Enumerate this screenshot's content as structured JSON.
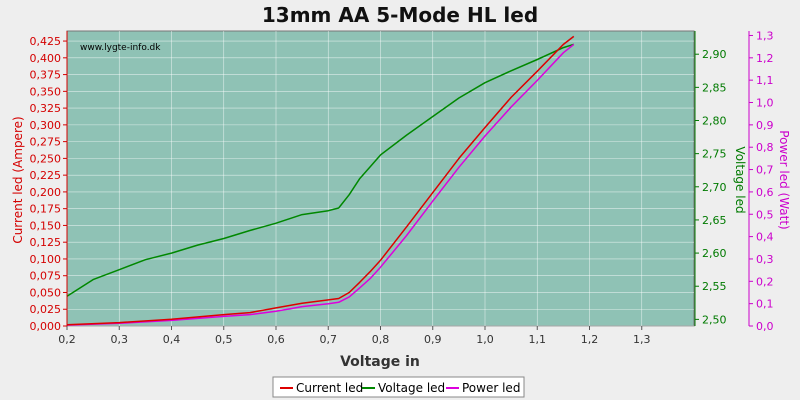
{
  "chart_data": {
    "type": "line",
    "title": "13mm AA 5-Mode HL led",
    "watermark": "www.lygte-info.dk",
    "xlabel": "Voltage in",
    "xlim": [
      0.2,
      1.4
    ],
    "x_ticks": [
      "0,2",
      "0,3",
      "0,4",
      "0,5",
      "0,6",
      "0,7",
      "0,8",
      "0,9",
      "1,0",
      "1,1",
      "1,2",
      "1,3"
    ],
    "axes": {
      "left": {
        "label": "Current led (Ampere)",
        "color": "#d40000",
        "lim": [
          0.0,
          0.44
        ],
        "ticks": [
          "0,000",
          "0,025",
          "0,050",
          "0,075",
          "0,100",
          "0,125",
          "0,150",
          "0,175",
          "0,200",
          "0,225",
          "0,250",
          "0,275",
          "0,300",
          "0,325",
          "0,350",
          "0,375",
          "0,400",
          "0,425"
        ]
      },
      "right1": {
        "label": "Voltage led",
        "color": "#007a00",
        "lim": [
          2.49,
          2.935
        ],
        "ticks": [
          "2,50",
          "2,55",
          "2,60",
          "2,65",
          "2,70",
          "2,75",
          "2,80",
          "2,85",
          "2,90"
        ]
      },
      "right2": {
        "label": "Power led (Watt)",
        "color": "#cc00cc",
        "lim": [
          0.0,
          1.32
        ],
        "ticks": [
          "0,0",
          "0,1",
          "0,2",
          "0,3",
          "0,4",
          "0,5",
          "0,6",
          "0,7",
          "0,8",
          "0,9",
          "1,0",
          "1,1",
          "1,2",
          "1,3"
        ]
      }
    },
    "grid": true,
    "legend_position": "bottom-center",
    "series": [
      {
        "name": "Current led",
        "color": "#dd0000",
        "axis": "left",
        "x": [
          0.2,
          0.3,
          0.4,
          0.5,
          0.55,
          0.6,
          0.65,
          0.7,
          0.72,
          0.74,
          0.76,
          0.78,
          0.8,
          0.85,
          0.9,
          0.95,
          1.0,
          1.05,
          1.1,
          1.15,
          1.17
        ],
        "y": [
          0.002,
          0.005,
          0.01,
          0.017,
          0.02,
          0.027,
          0.034,
          0.039,
          0.041,
          0.05,
          0.065,
          0.081,
          0.098,
          0.148,
          0.199,
          0.25,
          0.296,
          0.341,
          0.38,
          0.42,
          0.432
        ]
      },
      {
        "name": "Voltage led",
        "color": "#008800",
        "axis": "right1",
        "x": [
          0.2,
          0.25,
          0.3,
          0.35,
          0.4,
          0.45,
          0.5,
          0.55,
          0.6,
          0.65,
          0.7,
          0.72,
          0.74,
          0.76,
          0.78,
          0.8,
          0.85,
          0.9,
          0.95,
          1.0,
          1.05,
          1.1,
          1.15,
          1.17
        ],
        "y": [
          2.535,
          2.56,
          2.575,
          2.59,
          2.6,
          2.612,
          2.622,
          2.634,
          2.645,
          2.658,
          2.664,
          2.668,
          2.688,
          2.712,
          2.73,
          2.748,
          2.778,
          2.806,
          2.834,
          2.857,
          2.875,
          2.892,
          2.91,
          2.915
        ]
      },
      {
        "name": "Power led",
        "color": "#dd00dd",
        "axis": "right2",
        "x": [
          0.2,
          0.3,
          0.4,
          0.5,
          0.55,
          0.6,
          0.65,
          0.7,
          0.72,
          0.74,
          0.76,
          0.78,
          0.8,
          0.85,
          0.9,
          0.95,
          1.0,
          1.05,
          1.1,
          1.15,
          1.17
        ],
        "y": [
          0.004,
          0.012,
          0.025,
          0.043,
          0.051,
          0.066,
          0.087,
          0.1,
          0.106,
          0.13,
          0.17,
          0.212,
          0.263,
          0.405,
          0.559,
          0.71,
          0.85,
          0.98,
          1.099,
          1.223,
          1.26
        ]
      }
    ]
  }
}
